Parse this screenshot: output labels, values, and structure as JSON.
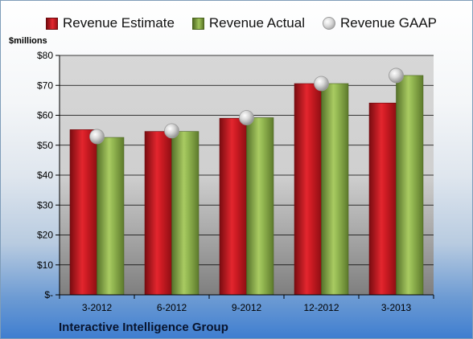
{
  "legend": {
    "estimate": "Revenue Estimate",
    "actual": "Revenue Actual",
    "gaap": "Revenue GAAP"
  },
  "units_label": "$millions",
  "company": "Interactive Intelligence Group",
  "colors": {
    "estimate": "#c8161e",
    "actual": "#8fb04f",
    "gaap": "#bfbfbf"
  },
  "chart_data": {
    "type": "bar",
    "categories": [
      "3-2012",
      "6-2012",
      "9-2012",
      "12-2012",
      "3-2013"
    ],
    "series": [
      {
        "name": "Revenue Estimate",
        "values": [
          55.2,
          54.6,
          59.0,
          70.6,
          64.1
        ]
      },
      {
        "name": "Revenue Actual",
        "values": [
          52.6,
          54.6,
          59.2,
          70.6,
          73.3
        ]
      },
      {
        "name": "Revenue GAAP",
        "values": [
          52.9,
          54.8,
          59.2,
          70.6,
          73.3
        ]
      }
    ],
    "ylim": [
      0,
      80
    ],
    "yticks": [
      0,
      10,
      20,
      30,
      40,
      50,
      60,
      70,
      80
    ],
    "ytick_labels": [
      "$-",
      "$10",
      "$20",
      "$30",
      "$40",
      "$50",
      "$60",
      "$70",
      "$80"
    ],
    "ylabel": "$millions",
    "title": "",
    "xlabel": "",
    "grid": true,
    "legend_position": "top"
  }
}
